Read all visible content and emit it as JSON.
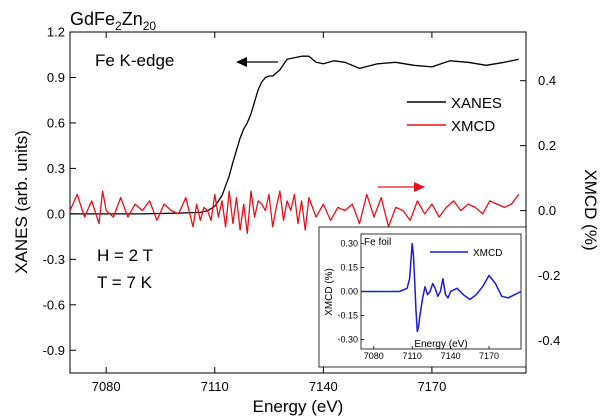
{
  "chart_data": [
    {
      "type": "line",
      "title_parts": {
        "base": "GdFe",
        "sub1": "2",
        "mid": "Zn",
        "sub2": "20"
      },
      "xlabel": "Energy (eV)",
      "ylabel_left": "XANES (arb. units)",
      "ylabel_right": "XMCD (%)",
      "xlim": [
        7070,
        7196
      ],
      "ylim_left": [
        -1.05,
        1.2
      ],
      "ylim_right": [
        -0.5,
        0.55
      ],
      "x_ticks": [
        "7080",
        "7110",
        "7140",
        "7170"
      ],
      "x_tick_values": [
        7080,
        7110,
        7140,
        7170
      ],
      "y_ticks_left": [
        "-0.9",
        "-0.6",
        "-0.3",
        "0.0",
        "0.3",
        "0.6",
        "0.9",
        "1.2"
      ],
      "y_tick_values_left": [
        -0.9,
        -0.6,
        -0.3,
        0.0,
        0.3,
        0.6,
        0.9,
        1.2
      ],
      "y_ticks_right": [
        "-0.4",
        "-0.2",
        "0.0",
        "0.2",
        "0.4"
      ],
      "y_tick_values_right": [
        -0.4,
        -0.2,
        0.0,
        0.2,
        0.4
      ],
      "annotations": {
        "edge": "Fe K-edge",
        "field": "H = 2 T",
        "temperature": "T = 7 K"
      },
      "legend": {
        "placement": "right",
        "entries": [
          "XANES",
          "XMCD"
        ]
      },
      "series": [
        {
          "name": "XANES",
          "axis": "left",
          "color": "#000000",
          "x": [
            7070,
            7090,
            7100,
            7106,
            7108,
            7110,
            7112,
            7114,
            7115,
            7116,
            7117,
            7118,
            7119,
            7120,
            7121,
            7122,
            7123,
            7124,
            7125,
            7126,
            7128,
            7130,
            7132,
            7134,
            7136,
            7138,
            7140,
            7143,
            7146,
            7150,
            7155,
            7160,
            7165,
            7170,
            7175,
            7180,
            7185,
            7190,
            7194
          ],
          "values": [
            0.0,
            0.0,
            0.005,
            0.01,
            0.02,
            0.05,
            0.12,
            0.25,
            0.34,
            0.42,
            0.5,
            0.56,
            0.6,
            0.66,
            0.74,
            0.82,
            0.87,
            0.9,
            0.91,
            0.91,
            0.95,
            1.02,
            1.03,
            1.04,
            1.04,
            1.0,
            0.99,
            1.01,
            1.0,
            0.96,
            0.99,
            1.0,
            0.98,
            0.97,
            1.01,
            1.0,
            0.98,
            1.0,
            1.02
          ]
        },
        {
          "name": "XMCD",
          "axis": "right",
          "color": "#e8101a",
          "x": [
            7070,
            7072,
            7074,
            7076,
            7078,
            7079,
            7080,
            7082,
            7084,
            7086,
            7088,
            7090,
            7092,
            7094,
            7096,
            7098,
            7100,
            7102,
            7104,
            7105,
            7106,
            7107,
            7108,
            7109,
            7110,
            7111,
            7112,
            7113,
            7114,
            7115,
            7116,
            7117,
            7118,
            7119,
            7120,
            7121,
            7122,
            7123,
            7124,
            7125,
            7126,
            7127,
            7128,
            7129,
            7130,
            7131,
            7132,
            7133,
            7134,
            7135,
            7136,
            7137,
            7138,
            7140,
            7142,
            7144,
            7146,
            7148,
            7150,
            7152,
            7154,
            7156,
            7158,
            7160,
            7162,
            7164,
            7166,
            7168,
            7170,
            7172,
            7174,
            7176,
            7178,
            7180,
            7182,
            7184,
            7186,
            7188,
            7190,
            7192,
            7194
          ],
          "values": [
            0.0,
            0.05,
            -0.02,
            0.03,
            -0.04,
            0.06,
            0.0,
            -0.02,
            0.04,
            -0.02,
            0.02,
            0.0,
            0.03,
            -0.03,
            0.02,
            0.0,
            -0.01,
            0.04,
            -0.05,
            0.02,
            -0.03,
            0.01,
            0.0,
            -0.03,
            0.05,
            -0.02,
            0.03,
            -0.05,
            0.06,
            -0.04,
            0.04,
            -0.06,
            0.02,
            -0.07,
            0.06,
            -0.02,
            0.03,
            0.02,
            0.0,
            0.05,
            -0.05,
            0.01,
            0.06,
            -0.03,
            0.03,
            0.0,
            0.05,
            -0.04,
            0.03,
            -0.06,
            0.04,
            0.01,
            -0.02,
            0.02,
            -0.03,
            0.01,
            0.0,
            0.02,
            -0.04,
            0.05,
            -0.02,
            0.04,
            -0.05,
            0.01,
            0.0,
            -0.03,
            0.03,
            -0.01,
            0.02,
            -0.02,
            0.01,
            0.03,
            0.0,
            0.02,
            0.01,
            -0.01,
            0.03,
            0.02,
            0.01,
            0.02,
            0.05
          ]
        }
      ]
    },
    {
      "type": "line",
      "label": "Fe foil",
      "xlabel": "Energy (eV)",
      "ylabel": "XMCD (%)",
      "xlim": [
        7070,
        7195
      ],
      "ylim": [
        -0.36,
        0.36
      ],
      "x_ticks": [
        "7080",
        "7110",
        "7140",
        "7170"
      ],
      "x_tick_values": [
        7080,
        7110,
        7140,
        7170
      ],
      "y_ticks": [
        "-0.30",
        "-0.15",
        "0.00",
        "0.15",
        "0.30"
      ],
      "y_tick_values": [
        -0.3,
        -0.15,
        0.0,
        0.15,
        0.3
      ],
      "legend": {
        "placement": "top-right",
        "entries": [
          "XMCD"
        ]
      },
      "series": [
        {
          "name": "XMCD",
          "color": "#1a1adc",
          "x": [
            7070,
            7090,
            7100,
            7106,
            7108,
            7110,
            7111,
            7112,
            7113,
            7114,
            7115,
            7116,
            7118,
            7120,
            7122,
            7124,
            7126,
            7128,
            7130,
            7132,
            7134,
            7136,
            7138,
            7140,
            7145,
            7150,
            7155,
            7160,
            7165,
            7170,
            7175,
            7180,
            7185,
            7190,
            7195
          ],
          "values": [
            0.0,
            0.0,
            0.0,
            0.02,
            0.08,
            0.3,
            0.22,
            0.05,
            -0.12,
            -0.25,
            -0.22,
            -0.15,
            -0.05,
            0.03,
            -0.02,
            0.0,
            0.05,
            0.02,
            -0.03,
            0.0,
            0.08,
            -0.02,
            -0.04,
            0.0,
            0.02,
            -0.02,
            -0.05,
            -0.02,
            0.03,
            0.1,
            0.05,
            -0.03,
            -0.04,
            -0.02,
            0.0
          ]
        }
      ]
    }
  ]
}
